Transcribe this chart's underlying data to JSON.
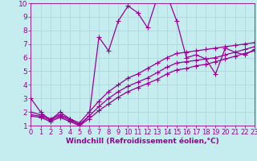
{
  "title": "",
  "xlabel": "Windchill (Refroidissement éolien,°C)",
  "xlim": [
    0,
    23
  ],
  "ylim": [
    1,
    10
  ],
  "xticks": [
    0,
    1,
    2,
    3,
    4,
    5,
    6,
    7,
    8,
    9,
    10,
    11,
    12,
    13,
    14,
    15,
    16,
    17,
    18,
    19,
    20,
    21,
    22,
    23
  ],
  "yticks": [
    1,
    2,
    3,
    4,
    5,
    6,
    7,
    8,
    9,
    10
  ],
  "bg_color": "#c5ecee",
  "line_color": "#990099",
  "grid_color": "#aad4d8",
  "series": [
    {
      "x": [
        0,
        1,
        2,
        3,
        4,
        5,
        6,
        7,
        8,
        9,
        10,
        11,
        12,
        13,
        14,
        15,
        16,
        17,
        18,
        19,
        20,
        21,
        22,
        23
      ],
      "y": [
        3.0,
        2.0,
        1.4,
        2.0,
        1.5,
        1.0,
        1.7,
        7.5,
        6.5,
        8.7,
        9.8,
        9.3,
        8.2,
        10.4,
        10.6,
        8.7,
        6.0,
        6.2,
        5.9,
        4.8,
        6.7,
        6.4,
        6.2,
        6.6
      ]
    },
    {
      "x": [
        0,
        1,
        2,
        3,
        4,
        5,
        6,
        7,
        8,
        9,
        10,
        11,
        12,
        13,
        14,
        15,
        16,
        17,
        18,
        19,
        20,
        21,
        22,
        23
      ],
      "y": [
        2.0,
        1.8,
        1.5,
        1.8,
        1.5,
        1.2,
        2.0,
        2.8,
        3.5,
        4.0,
        4.5,
        4.8,
        5.2,
        5.6,
        6.0,
        6.3,
        6.4,
        6.5,
        6.6,
        6.7,
        6.8,
        6.9,
        7.0,
        7.1
      ]
    },
    {
      "x": [
        0,
        1,
        2,
        3,
        4,
        5,
        6,
        7,
        8,
        9,
        10,
        11,
        12,
        13,
        14,
        15,
        16,
        17,
        18,
        19,
        20,
        21,
        22,
        23
      ],
      "y": [
        1.8,
        1.7,
        1.4,
        1.7,
        1.4,
        1.1,
        1.7,
        2.4,
        3.0,
        3.5,
        3.9,
        4.2,
        4.5,
        4.9,
        5.3,
        5.6,
        5.7,
        5.8,
        5.9,
        6.0,
        6.2,
        6.4,
        6.6,
        6.8
      ]
    },
    {
      "x": [
        0,
        1,
        2,
        3,
        4,
        5,
        6,
        7,
        8,
        9,
        10,
        11,
        12,
        13,
        14,
        15,
        16,
        17,
        18,
        19,
        20,
        21,
        22,
        23
      ],
      "y": [
        1.7,
        1.6,
        1.3,
        1.6,
        1.3,
        1.0,
        1.5,
        2.1,
        2.6,
        3.1,
        3.5,
        3.8,
        4.1,
        4.4,
        4.8,
        5.1,
        5.2,
        5.4,
        5.5,
        5.7,
        5.9,
        6.1,
        6.3,
        6.5
      ]
    }
  ],
  "marker": "+",
  "markersize": 4,
  "linewidth": 0.9,
  "xlabel_fontsize": 6.5,
  "tick_fontsize": 6.0
}
